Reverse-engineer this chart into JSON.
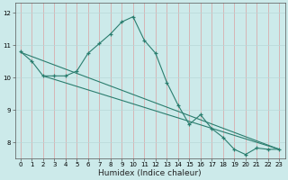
{
  "title": "",
  "xlabel": "Humidex (Indice chaleur)",
  "xlim": [
    -0.5,
    23.5
  ],
  "ylim": [
    7.5,
    12.3
  ],
  "yticks": [
    8,
    9,
    10,
    11,
    12
  ],
  "xticks": [
    0,
    1,
    2,
    3,
    4,
    5,
    6,
    7,
    8,
    9,
    10,
    11,
    12,
    13,
    14,
    15,
    16,
    17,
    18,
    19,
    20,
    21,
    22,
    23
  ],
  "line1_x": [
    0,
    1,
    2,
    3,
    4,
    5,
    6,
    7,
    8,
    9,
    10,
    11,
    12,
    13,
    14,
    15,
    16,
    17,
    18,
    19,
    20,
    21,
    22,
    23
  ],
  "line1_y": [
    10.8,
    10.5,
    10.05,
    10.05,
    10.05,
    10.2,
    10.75,
    11.05,
    11.35,
    11.72,
    11.88,
    11.15,
    10.75,
    9.85,
    9.15,
    8.55,
    8.85,
    8.42,
    8.15,
    7.78,
    7.62,
    7.82,
    7.78,
    7.78
  ],
  "trend_x": [
    0,
    23
  ],
  "trend_y": [
    10.78,
    7.78
  ],
  "trend2_x": [
    2,
    23
  ],
  "trend2_y": [
    10.05,
    7.78
  ],
  "color": "#2a7d6e",
  "bg_color": "#cceaea",
  "vgrid_color": "#d9a0a0",
  "hgrid_color": "#b8d8d8",
  "tick_fontsize": 5.0,
  "xlabel_fontsize": 6.5
}
